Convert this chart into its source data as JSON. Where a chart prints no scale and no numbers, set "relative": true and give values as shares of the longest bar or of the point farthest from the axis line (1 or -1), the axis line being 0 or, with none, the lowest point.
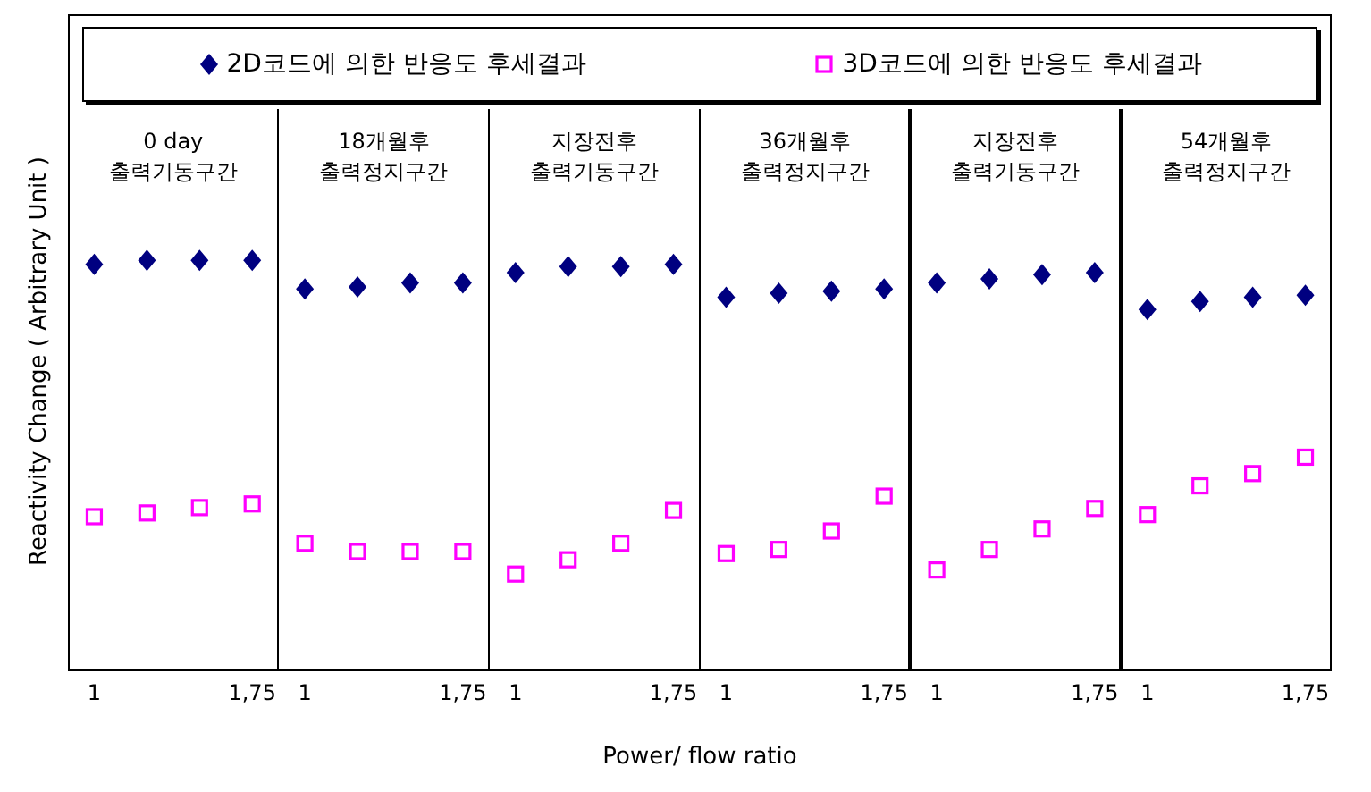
{
  "chart_data": {
    "type": "scatter",
    "relative": true,
    "ylabel": "Reactivity Change ( Arbitrary Unit )",
    "xlabel": "Power/ flow ratio",
    "legend": "top",
    "tick_labels": "x",
    "categories": [
      "1",
      null,
      null,
      "1,75",
      "1",
      null,
      null,
      "1,75",
      "1",
      null,
      null,
      "1,75",
      "1",
      null,
      null,
      "1,75",
      "1",
      null,
      null,
      "1,75",
      "1",
      null,
      null,
      "1,75"
    ],
    "annotations": [
      "0 day\n출력기동구간",
      "18개월후\n출력정지구간",
      "지장전후\n출력기동구간",
      "36개월후\n출력정지구간",
      "지장전후\n출력기동구간",
      "54개월후\n출력정지구간"
    ],
    "series": [
      {
        "name": "2D코드에 의한 반응도 후세결과",
        "color": "#000080",
        "marker": "diamond",
        "values": [
          0.99,
          1,
          1,
          1,
          0.93,
          0.935,
          0.945,
          0.945,
          0.97,
          0.985,
          0.985,
          0.99,
          0.91,
          0.92,
          0.925,
          0.93,
          0.945,
          0.955,
          0.965,
          0.97,
          0.88,
          0.9,
          0.91,
          0.915
        ]
      },
      {
        "name": "3D코드에 의한 반응도 후세결과",
        "color": "#ff00ff",
        "marker": "square",
        "values": [
          0.375,
          0.384,
          0.397,
          0.406,
          0.31,
          0.29,
          0.29,
          0.29,
          0.235,
          0.27,
          0.31,
          0.39,
          0.285,
          0.295,
          0.34,
          0.425,
          0.245,
          0.295,
          0.345,
          0.395,
          0.38,
          0.45,
          0.48,
          0.52
        ]
      }
    ]
  }
}
